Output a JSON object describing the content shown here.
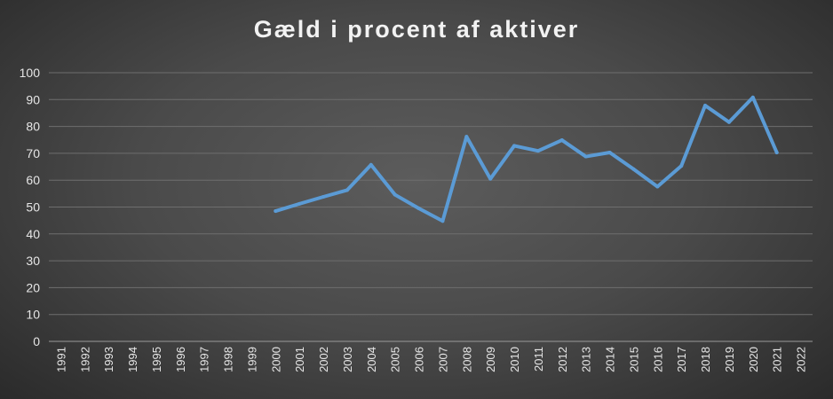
{
  "chart_data": {
    "type": "line",
    "title": "Gæld i procent af aktiver",
    "xlabel": "",
    "ylabel": "",
    "ylim": [
      0,
      100
    ],
    "yticks": [
      "0",
      "10",
      "20",
      "30",
      "40",
      "50",
      "60",
      "70",
      "80",
      "90",
      "100"
    ],
    "categories": [
      "1991",
      "1992",
      "1993",
      "1994",
      "1995",
      "1996",
      "1997",
      "1998",
      "1999",
      "2000",
      "2001",
      "2002",
      "2003",
      "2004",
      "2005",
      "2006",
      "2007",
      "2008",
      "2009",
      "2010",
      "2011",
      "2012",
      "2013",
      "2014",
      "2015",
      "2016",
      "2017",
      "2018",
      "2019",
      "2020",
      "2021",
      "2022"
    ],
    "series": [
      {
        "values": [
          null,
          null,
          null,
          null,
          null,
          null,
          null,
          null,
          null,
          48.5,
          51.2,
          53.8,
          56.3,
          65.7,
          54.6,
          49.5,
          44.8,
          76.2,
          60.5,
          72.8,
          70.9,
          74.9,
          68.8,
          70.3,
          64.1,
          57.6,
          65.3,
          87.8,
          81.6,
          90.8,
          70.3,
          null
        ],
        "color": "#5b9bd5"
      }
    ],
    "grid": true,
    "legend": "none"
  }
}
